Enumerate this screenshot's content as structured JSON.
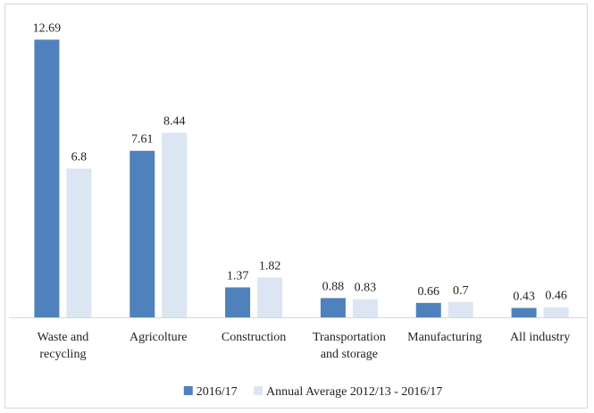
{
  "chart_data": {
    "type": "bar",
    "title": "",
    "xlabel": "",
    "ylabel": "",
    "ylim": [
      0,
      13.4
    ],
    "grid": false,
    "legend_position": "bottom",
    "categories": [
      [
        "Waste and",
        "recycling"
      ],
      [
        "Agricolture"
      ],
      [
        "Construction"
      ],
      [
        "Transportation",
        "and storage"
      ],
      [
        "Manufacturing"
      ],
      [
        "All industry"
      ]
    ],
    "series": [
      {
        "name": "2016/17",
        "color": "#4f81bd",
        "values": [
          12.69,
          7.61,
          1.37,
          0.88,
          0.66,
          0.43
        ]
      },
      {
        "name": "Annual Average 2012/13 - 2016/17",
        "color": "#dce6f2",
        "values": [
          6.8,
          8.44,
          1.82,
          0.83,
          0.7,
          0.46
        ]
      }
    ]
  }
}
